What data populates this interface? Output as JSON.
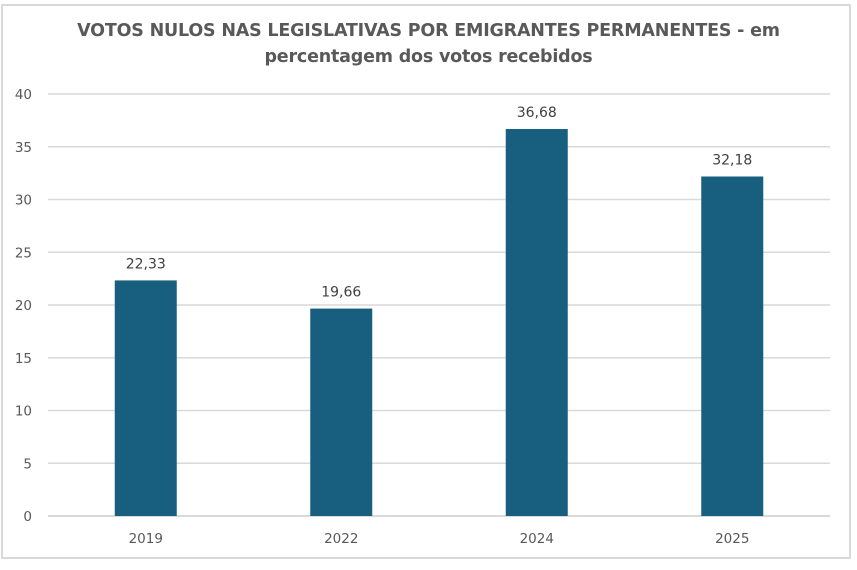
{
  "chart_data": {
    "type": "bar",
    "title_line1": "VOTOS NULOS NAS LEGISLATIVAS POR EMIGRANTES PERMANENTES - em",
    "title_line2": "percentagem dos votos recebidos",
    "categories": [
      "2019",
      "2022",
      "2024",
      "2025"
    ],
    "values": [
      22.33,
      19.66,
      36.68,
      32.18
    ],
    "data_labels": [
      "22,33",
      "19,66",
      "36,68",
      "32,18"
    ],
    "xlabel": "",
    "ylabel": "",
    "ylim": [
      0,
      40
    ],
    "yticks": [
      0,
      5,
      10,
      15,
      20,
      25,
      30,
      35,
      40
    ],
    "grid": true,
    "legend": "none",
    "bar_color": "#175e7f",
    "grid_color": "#d9d9d9"
  }
}
